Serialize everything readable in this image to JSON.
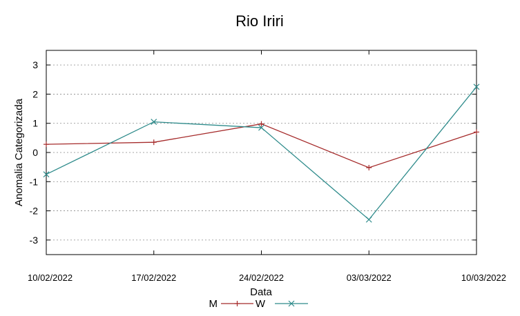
{
  "chart_data": {
    "type": "line",
    "title": "Rio Iriri",
    "xlabel": "Data",
    "ylabel": "Anomalia Categorizada",
    "categories": [
      "10/02/2022",
      "17/02/2022",
      "24/02/2022",
      "03/03/2022",
      "10/03/2022"
    ],
    "yticks": [
      "3",
      "2",
      "1",
      "0",
      "-1",
      "-2",
      "-3"
    ],
    "ylim": [
      -3.5,
      3.5
    ],
    "grid": true,
    "legend_position": "bottom-center",
    "series": [
      {
        "name": "M",
        "values": [
          0.28,
          0.35,
          0.98,
          -0.52,
          0.7
        ],
        "color": "#a52a2a",
        "marker": "plus"
      },
      {
        "name": "W",
        "values": [
          -0.75,
          1.05,
          0.85,
          -2.3,
          2.25
        ],
        "color": "#2e8b8b",
        "marker": "cross"
      }
    ]
  }
}
